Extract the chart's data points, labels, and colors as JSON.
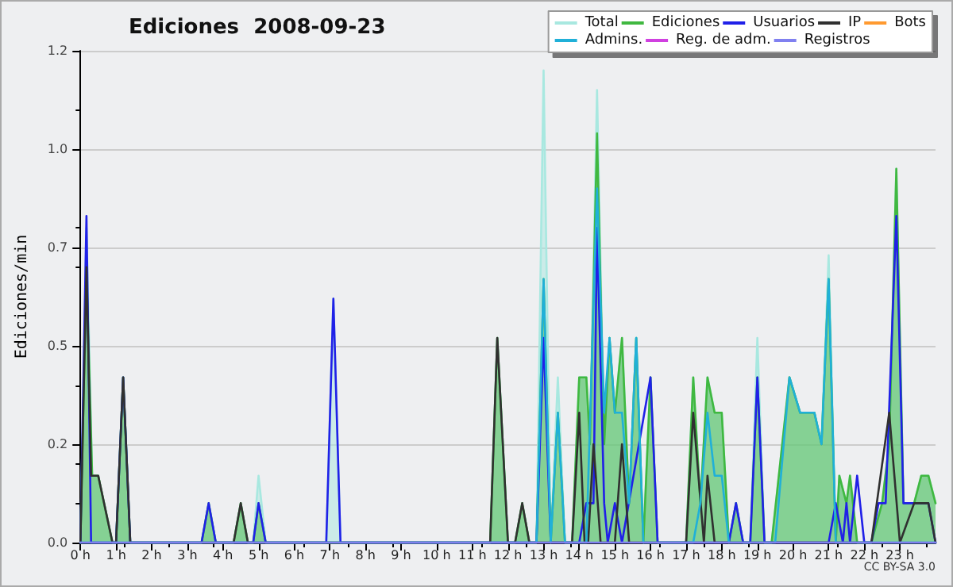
{
  "chart_data": {
    "type": "area",
    "title": "Ediciones  2008-09-23",
    "ylabel": "Ediciones/min",
    "annotations": [
      "CC BY-SA 3.0"
    ],
    "xlim": [
      0,
      24
    ],
    "xticks": [
      {
        "value": 0,
        "label": "0 h"
      },
      {
        "value": 1,
        "label": "1 h"
      },
      {
        "value": 2,
        "label": "2 h"
      },
      {
        "value": 3,
        "label": "3 h"
      },
      {
        "value": 4,
        "label": "4 h"
      },
      {
        "value": 5,
        "label": "5 h"
      },
      {
        "value": 6,
        "label": "6 h"
      },
      {
        "value": 7,
        "label": "7 h"
      },
      {
        "value": 8,
        "label": "8 h"
      },
      {
        "value": 9,
        "label": "9 h"
      },
      {
        "value": 10,
        "label": "10 h"
      },
      {
        "value": 11,
        "label": "11 h"
      },
      {
        "value": 12,
        "label": "12 h"
      },
      {
        "value": 13,
        "label": "13 h"
      },
      {
        "value": 14,
        "label": "14 h"
      },
      {
        "value": 15,
        "label": "15 h"
      },
      {
        "value": 16,
        "label": "16 h"
      },
      {
        "value": 17,
        "label": "17 h"
      },
      {
        "value": 18,
        "label": "18 h"
      },
      {
        "value": 19,
        "label": "19 h"
      },
      {
        "value": 20,
        "label": "20 h"
      },
      {
        "value": 21,
        "label": "21 h"
      },
      {
        "value": 22,
        "label": "22 h"
      },
      {
        "value": 23,
        "label": "23 h"
      }
    ],
    "ylim": [
      0,
      1.25
    ],
    "yticks": [
      {
        "value": 0,
        "label": "0.0"
      },
      {
        "value": 0.25,
        "label": "0.2"
      },
      {
        "value": 0.5,
        "label": "0.5"
      },
      {
        "value": 0.75,
        "label": "0.7"
      },
      {
        "value": 1,
        "label": "1.0"
      },
      {
        "value": 1.25,
        "label": "1.2"
      }
    ],
    "grid": "y",
    "legend": "top right",
    "marker": "none",
    "line_style": "solid",
    "series": [
      {
        "name": "Total",
        "type": "area",
        "color": "#a8e8e0",
        "x": [
          0,
          0.17,
          0.33,
          0.5,
          0.9,
          1,
          1.2,
          1.4,
          3.4,
          3.6,
          3.8,
          4.3,
          4.5,
          4.7,
          4.85,
          5,
          5.2,
          6.9,
          7.1,
          7.3,
          11.5,
          11.7,
          12,
          12.2,
          12.4,
          12.6,
          12.8,
          13,
          13.2,
          13.4,
          13.6,
          13.8,
          14,
          14.2,
          14.3,
          14.5,
          14.7,
          14.85,
          15,
          15.2,
          15.4,
          15.6,
          15.8,
          16,
          16.2,
          17,
          17.2,
          17.4,
          17.6,
          17.8,
          18,
          18.2,
          18.4,
          18.6,
          18.8,
          19,
          19.2,
          19.4,
          19.9,
          20.2,
          20.6,
          20.8,
          21,
          21.2,
          21.3,
          21.5,
          21.6,
          21.8,
          22.2,
          22.5,
          22.7,
          22.9,
          23.1,
          23.4,
          23.6,
          23.8,
          24
        ],
        "values": [
          0,
          0.8,
          0.17,
          0.17,
          0,
          0,
          0.42,
          0,
          0,
          0.1,
          0,
          0,
          0.1,
          0,
          0,
          0.17,
          0,
          0,
          0.62,
          0,
          0,
          0.52,
          0,
          0,
          0.1,
          0,
          0,
          1.2,
          0,
          0.42,
          0,
          0,
          0.42,
          0.42,
          0.25,
          1.15,
          0.25,
          0.52,
          0.33,
          0.52,
          0.1,
          0.52,
          0,
          0.42,
          0,
          0,
          0.42,
          0.1,
          0.42,
          0.33,
          0.33,
          0,
          0.1,
          0,
          0,
          0.52,
          0,
          0,
          0.42,
          0.33,
          0.33,
          0.25,
          0.73,
          0,
          0.17,
          0.1,
          0.17,
          0,
          0,
          0.1,
          0.25,
          0.95,
          0.1,
          0.1,
          0.17,
          0.17,
          0.1
        ]
      },
      {
        "name": "Ediciones",
        "type": "area",
        "color": "#40b840",
        "x": [
          0,
          0.17,
          0.33,
          0.5,
          0.9,
          1,
          1.2,
          1.4,
          3.4,
          3.6,
          3.8,
          4.3,
          4.5,
          4.7,
          4.85,
          5,
          5.2,
          11.5,
          11.7,
          12,
          12.2,
          12.4,
          12.6,
          12.8,
          13,
          13.2,
          13.4,
          13.6,
          13.8,
          14,
          14.2,
          14.3,
          14.5,
          14.7,
          14.85,
          15,
          15.2,
          15.4,
          15.6,
          15.8,
          16,
          16.2,
          17,
          17.2,
          17.4,
          17.6,
          17.8,
          18,
          18.2,
          18.4,
          18.6,
          18.8,
          19,
          19.2,
          19.4,
          19.9,
          20.2,
          20.6,
          20.8,
          21,
          21.2,
          21.3,
          21.5,
          21.6,
          21.8,
          22.2,
          22.5,
          22.7,
          22.9,
          23.1,
          23.4,
          23.6,
          23.8,
          24
        ],
        "values": [
          0,
          0.7,
          0.17,
          0.17,
          0,
          0,
          0.42,
          0,
          0,
          0.1,
          0,
          0,
          0.1,
          0,
          0,
          0.1,
          0,
          0,
          0.52,
          0,
          0,
          0.1,
          0,
          0,
          0.67,
          0,
          0.33,
          0,
          0,
          0.42,
          0.42,
          0.25,
          1.04,
          0.25,
          0.52,
          0.33,
          0.52,
          0.1,
          0.52,
          0,
          0.42,
          0,
          0,
          0.42,
          0.1,
          0.42,
          0.33,
          0.33,
          0,
          0.1,
          0,
          0,
          0.42,
          0,
          0,
          0.42,
          0.33,
          0.33,
          0.25,
          0.67,
          0,
          0.17,
          0.1,
          0.17,
          0,
          0,
          0.1,
          0.25,
          0.95,
          0.1,
          0.1,
          0.17,
          0.17,
          0.1
        ]
      },
      {
        "name": "Usuarios",
        "type": "line",
        "color": "#2020e8",
        "x": [
          0,
          0.17,
          0.3,
          1,
          1.2,
          1.4,
          3.4,
          3.6,
          3.8,
          4.85,
          5,
          5.2,
          6.9,
          7.1,
          7.3,
          12.8,
          13,
          13.2,
          14,
          14.2,
          14.4,
          14.5,
          14.7,
          14.8,
          15,
          15.2,
          16,
          16.2,
          18.2,
          18.4,
          18.6,
          18.8,
          19,
          19.2,
          21,
          21.2,
          21.4,
          21.5,
          21.6,
          21.8,
          22,
          22.2,
          22.4,
          22.6,
          22.9,
          23.1,
          23.8,
          24
        ],
        "values": [
          0,
          0.83,
          0,
          0,
          0.42,
          0,
          0,
          0.1,
          0,
          0,
          0.1,
          0,
          0,
          0.62,
          0,
          0,
          0.52,
          0,
          0,
          0.1,
          0.1,
          0.8,
          0.1,
          0,
          0.1,
          0,
          0.42,
          0,
          0,
          0.1,
          0,
          0,
          0.42,
          0,
          0,
          0.1,
          0,
          0.1,
          0,
          0.17,
          0,
          0,
          0.1,
          0.1,
          0.83,
          0.1,
          0.1,
          0
        ]
      },
      {
        "name": "IP",
        "type": "line",
        "color": "#303030",
        "x": [
          0,
          0.17,
          0.3,
          0.5,
          0.9,
          1,
          1.2,
          1.4,
          4.3,
          4.5,
          4.7,
          11.5,
          11.7,
          12,
          12.2,
          12.4,
          12.6,
          13.8,
          14,
          14.15,
          14.25,
          14.4,
          14.6,
          15,
          15.2,
          15.4,
          17,
          17.2,
          17.5,
          17.6,
          17.8,
          22.2,
          22.7,
          23,
          23.4,
          23.8,
          24
        ],
        "values": [
          0,
          0.7,
          0.17,
          0.17,
          0,
          0,
          0.42,
          0,
          0,
          0.1,
          0,
          0,
          0.52,
          0,
          0,
          0.1,
          0,
          0,
          0.33,
          0,
          0,
          0.25,
          0,
          0,
          0.25,
          0,
          0,
          0.33,
          0,
          0.17,
          0,
          0,
          0.33,
          0,
          0.1,
          0.1,
          0
        ]
      },
      {
        "name": "Bots",
        "type": "line",
        "color": "#ff9a30"
      },
      {
        "name": "Admins.",
        "type": "line",
        "color": "#20b0d8",
        "x": [
          0,
          12.8,
          13,
          13.2,
          13.4,
          13.6,
          14.2,
          14.5,
          14.7,
          14.85,
          15,
          15.2,
          15.4,
          15.6,
          15.8,
          17.2,
          17.4,
          17.6,
          17.8,
          18,
          18.2,
          19.5,
          19.9,
          20.2,
          20.6,
          20.8,
          21,
          21.2,
          24
        ],
        "values": [
          0,
          0,
          0.67,
          0,
          0.33,
          0,
          0,
          0.9,
          0.33,
          0.52,
          0.33,
          0.33,
          0.1,
          0.52,
          0,
          0,
          0.1,
          0.33,
          0.17,
          0.17,
          0,
          0,
          0.42,
          0.33,
          0.33,
          0.25,
          0.67,
          0,
          0
        ]
      },
      {
        "name": "Reg. de adm.",
        "type": "line",
        "color": "#d040e0"
      },
      {
        "name": "Registros",
        "type": "line",
        "color": "#8080f0",
        "x": [
          0,
          24
        ],
        "values": [
          0,
          0
        ]
      }
    ]
  }
}
